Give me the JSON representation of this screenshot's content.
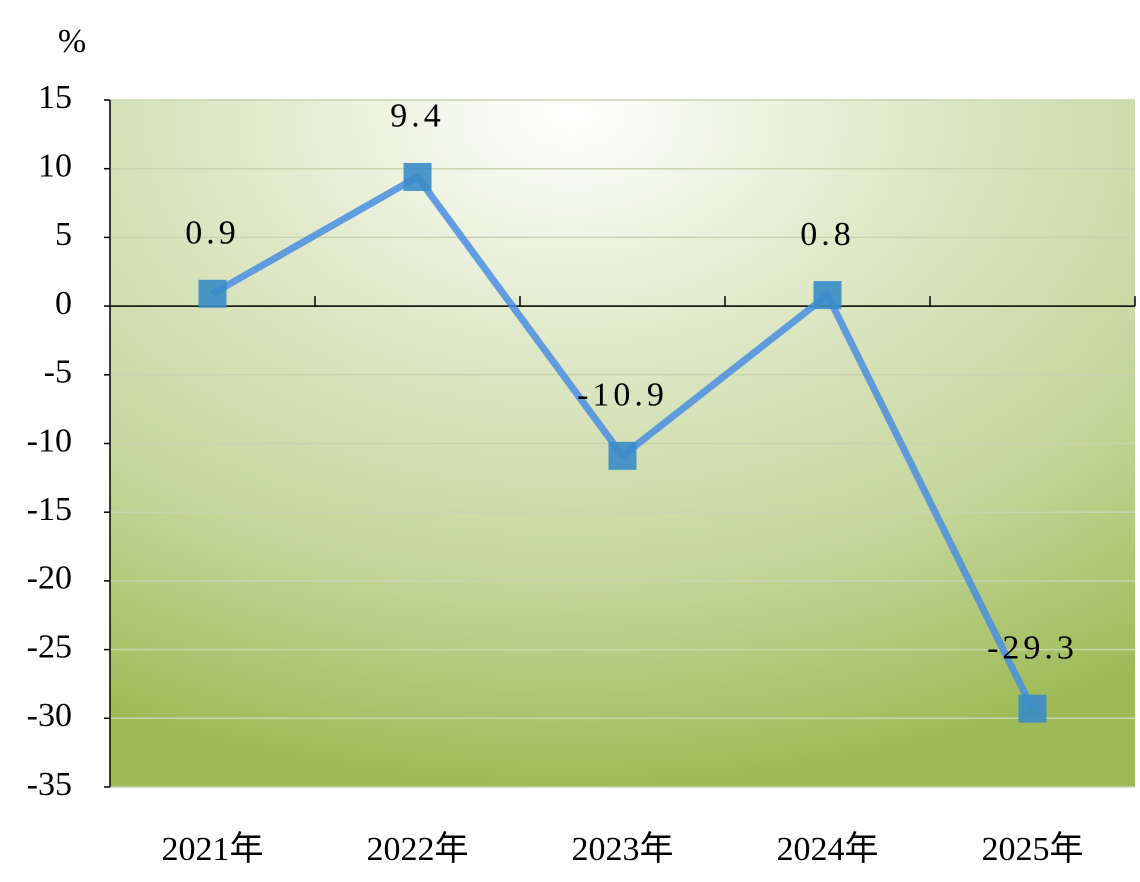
{
  "chart_data": {
    "type": "line",
    "y_label": "%",
    "categories": [
      "2021年",
      "2022年",
      "2023年",
      "2024年",
      "2025年"
    ],
    "series": [
      {
        "name": null,
        "color": "#4a8ee0",
        "marker_color": "#3a8cc8",
        "values": [
          0.9,
          9.4,
          -10.9,
          0.8,
          -29.3
        ]
      }
    ],
    "ylim": [
      -35,
      15
    ],
    "yticks": [
      -35,
      -30,
      -25,
      -20,
      -15,
      -10,
      -5,
      0,
      5,
      10,
      15
    ],
    "grid": true
  }
}
